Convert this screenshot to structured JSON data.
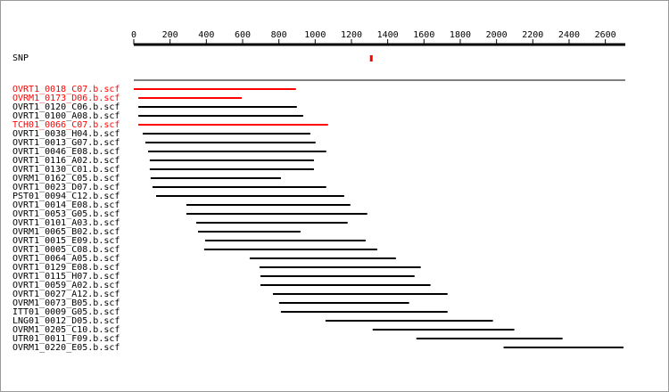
{
  "chart_data": {
    "type": "range",
    "xlim": [
      0,
      2710
    ],
    "xticks": [
      0,
      200,
      400,
      600,
      800,
      1000,
      1200,
      1400,
      1600,
      1800,
      2000,
      2200,
      2400,
      2600
    ],
    "snp": {
      "label": "SNP",
      "value": 1307,
      "color": "#ff0000"
    },
    "reads": [
      {
        "name": "OVRT1_0018_C07.b.scf",
        "start": 0,
        "end": 894,
        "color": "#ff0000"
      },
      {
        "name": "OVRM1_0173_D06.b.scf",
        "start": 25,
        "end": 595,
        "color": "#ff0000"
      },
      {
        "name": "OVRT1_0120_C06.b.scf",
        "start": 25,
        "end": 899,
        "color": "#000000"
      },
      {
        "name": "OVRT1_0100_A08.b.scf",
        "start": 25,
        "end": 934,
        "color": "#000000"
      },
      {
        "name": "TCH01_0066_C07.b.scf",
        "start": 25,
        "end": 1071,
        "color": "#ff0000"
      },
      {
        "name": "OVRT1_0038_H04.b.scf",
        "start": 49,
        "end": 973,
        "color": "#000000"
      },
      {
        "name": "OVRT1_0013_G07.b.scf",
        "start": 64,
        "end": 1002,
        "color": "#000000"
      },
      {
        "name": "OVRT1_0046_E08.b.scf",
        "start": 79,
        "end": 1061,
        "color": "#000000"
      },
      {
        "name": "OVRT1_0116_A02.b.scf",
        "start": 88,
        "end": 993,
        "color": "#000000"
      },
      {
        "name": "OVRT1_0130_C01.b.scf",
        "start": 88,
        "end": 993,
        "color": "#000000"
      },
      {
        "name": "OVRM1_0162_C05.b.scf",
        "start": 93,
        "end": 811,
        "color": "#000000"
      },
      {
        "name": "OVRT1_0023_D07.b.scf",
        "start": 103,
        "end": 1061,
        "color": "#000000"
      },
      {
        "name": "PST01_0094_C12.b.scf",
        "start": 123,
        "end": 1160,
        "color": "#000000"
      },
      {
        "name": "OVRT1_0014_E08.b.scf",
        "start": 290,
        "end": 1194,
        "color": "#000000"
      },
      {
        "name": "OVRT1_0053_G05.b.scf",
        "start": 290,
        "end": 1287,
        "color": "#000000"
      },
      {
        "name": "OVRT1_0101_A03.b.scf",
        "start": 344,
        "end": 1179,
        "color": "#000000"
      },
      {
        "name": "OVRM1_0065_B02.b.scf",
        "start": 354,
        "end": 919,
        "color": "#000000"
      },
      {
        "name": "OVRT1_0015_E09.b.scf",
        "start": 393,
        "end": 1278,
        "color": "#000000"
      },
      {
        "name": "OVRT1_0005_C08.b.scf",
        "start": 388,
        "end": 1342,
        "color": "#000000"
      },
      {
        "name": "OVRT1_0064_A05.b.scf",
        "start": 639,
        "end": 1445,
        "color": "#000000"
      },
      {
        "name": "OVRT1_0129_E08.b.scf",
        "start": 693,
        "end": 1582,
        "color": "#000000"
      },
      {
        "name": "OVRT1_0115_H07.b.scf",
        "start": 698,
        "end": 1548,
        "color": "#000000"
      },
      {
        "name": "OVRT1_0059_A02.b.scf",
        "start": 698,
        "end": 1636,
        "color": "#000000"
      },
      {
        "name": "OVRT1_0027_A12.b.scf",
        "start": 767,
        "end": 1730,
        "color": "#000000"
      },
      {
        "name": "OVRM1_0073_B05.b.scf",
        "start": 801,
        "end": 1518,
        "color": "#000000"
      },
      {
        "name": "ITT01_0009_G05.b.scf",
        "start": 811,
        "end": 1730,
        "color": "#000000"
      },
      {
        "name": "LNG01_0012_D05.b.scf",
        "start": 1057,
        "end": 1980,
        "color": "#000000"
      },
      {
        "name": "OVRM1_0205_C10.b.scf",
        "start": 1317,
        "end": 2098,
        "color": "#000000"
      },
      {
        "name": "UTR01_0011_F09.b.scf",
        "start": 1558,
        "end": 2364,
        "color": "#000000"
      },
      {
        "name": "OVRM1_0220_E05.b.scf",
        "start": 2039,
        "end": 2700,
        "color": "#000000"
      }
    ]
  }
}
